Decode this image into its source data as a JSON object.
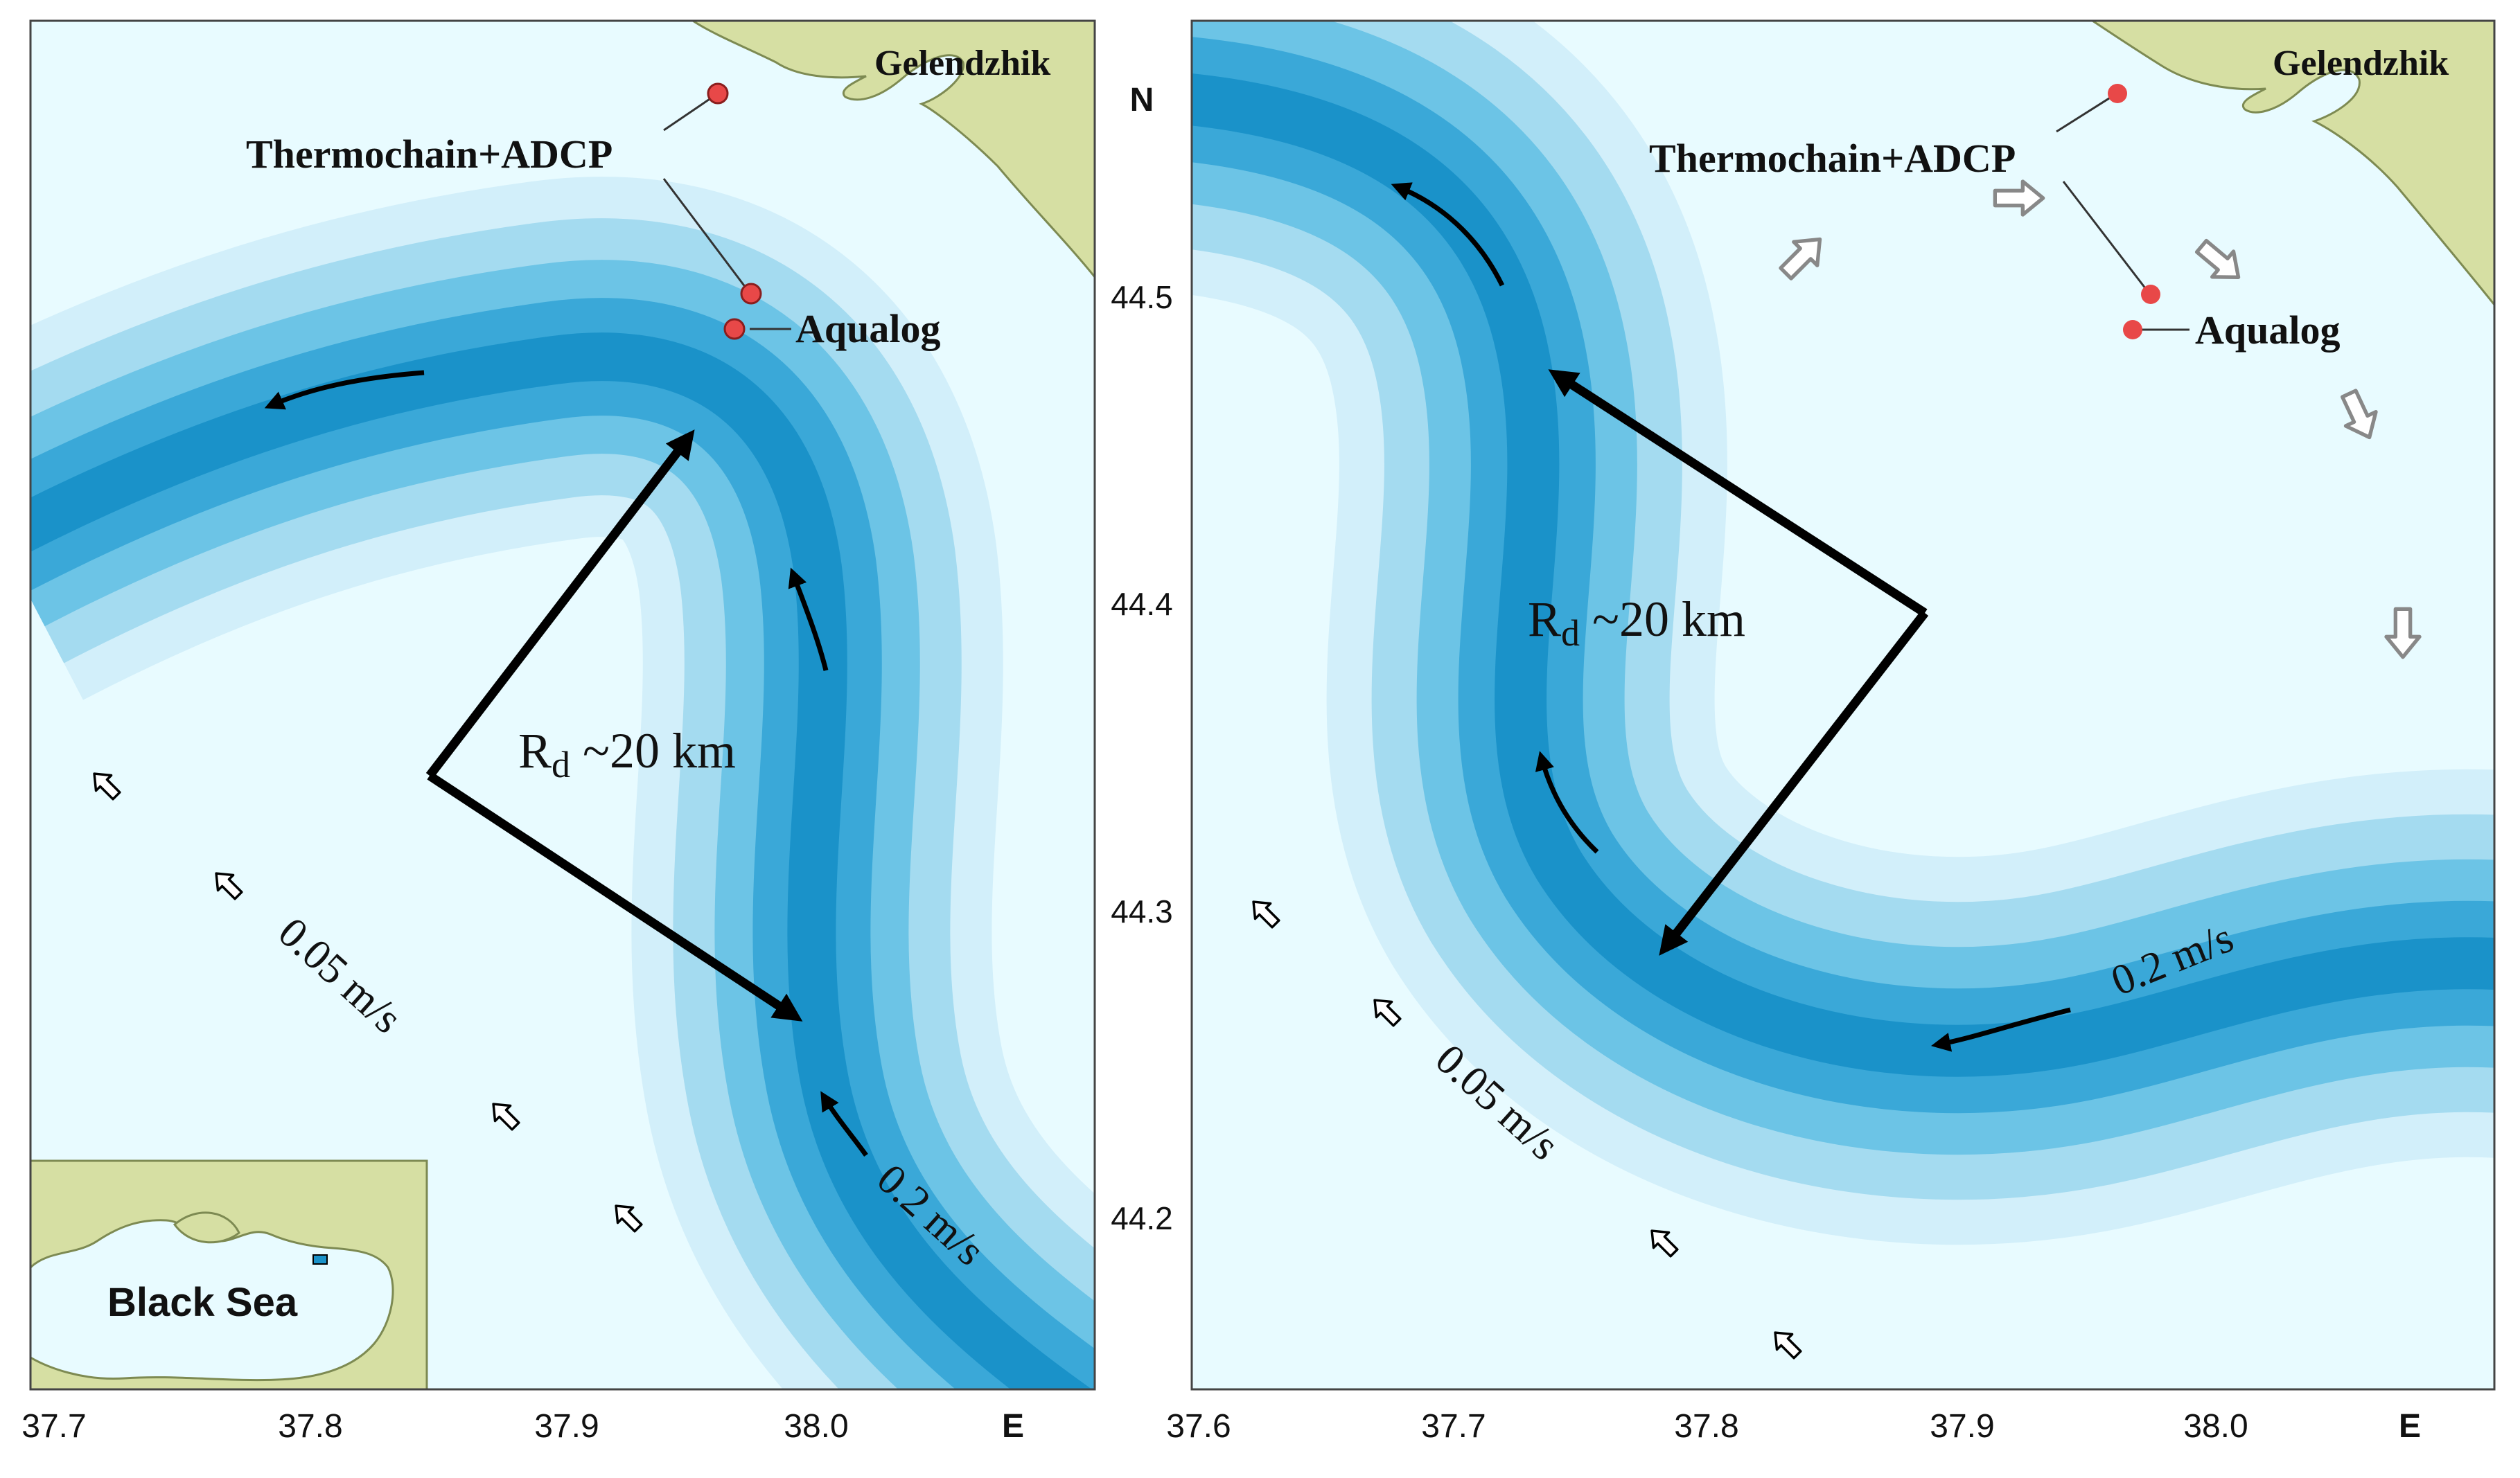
{
  "colors": {
    "sea": "#e8fbff",
    "land": "#d6dfa3",
    "land_edge": "#7d8a52",
    "current_core": "#1a96cc",
    "current_mid": "#4fb8de",
    "current_edge": "#bfe6f5",
    "mooring": "#e84848"
  },
  "icons": {
    "current_arrow": "curved-arrow-icon",
    "wind_vector": "hollow-arrow-icon",
    "mooring": "red-dot-icon"
  },
  "left_panel": {
    "city_label": "Gelendzhik",
    "mooring_label": "Thermochain+ADCP",
    "aqualog_label": "Aqualog",
    "radius_label": "R",
    "radius_subscript": "d",
    "radius_value": " ~20 km",
    "slow_speed_label": "0.05 m/s",
    "fast_speed_label": "0.2 m/s",
    "x_ticks": [
      "37.7",
      "37.8",
      "37.9",
      "38.0"
    ],
    "x_axis_letter": "E",
    "inset": {
      "label": "Black Sea"
    }
  },
  "right_panel": {
    "city_label": "Gelendzhik",
    "mooring_label": "Thermochain+ADCP",
    "aqualog_label": "Aqualog",
    "radius_label": "R",
    "radius_subscript": "d",
    "radius_value": " ~20 km",
    "slow_speed_label": "0.05 m/s",
    "fast_speed_label": "0.2 m/s",
    "x_ticks": [
      "37.6",
      "37.7",
      "37.8",
      "37.9",
      "38.0"
    ],
    "x_axis_letter": "E"
  },
  "y_axis": {
    "letter": "N",
    "ticks": [
      "44.5",
      "44.4",
      "44.3",
      "44.2"
    ]
  }
}
